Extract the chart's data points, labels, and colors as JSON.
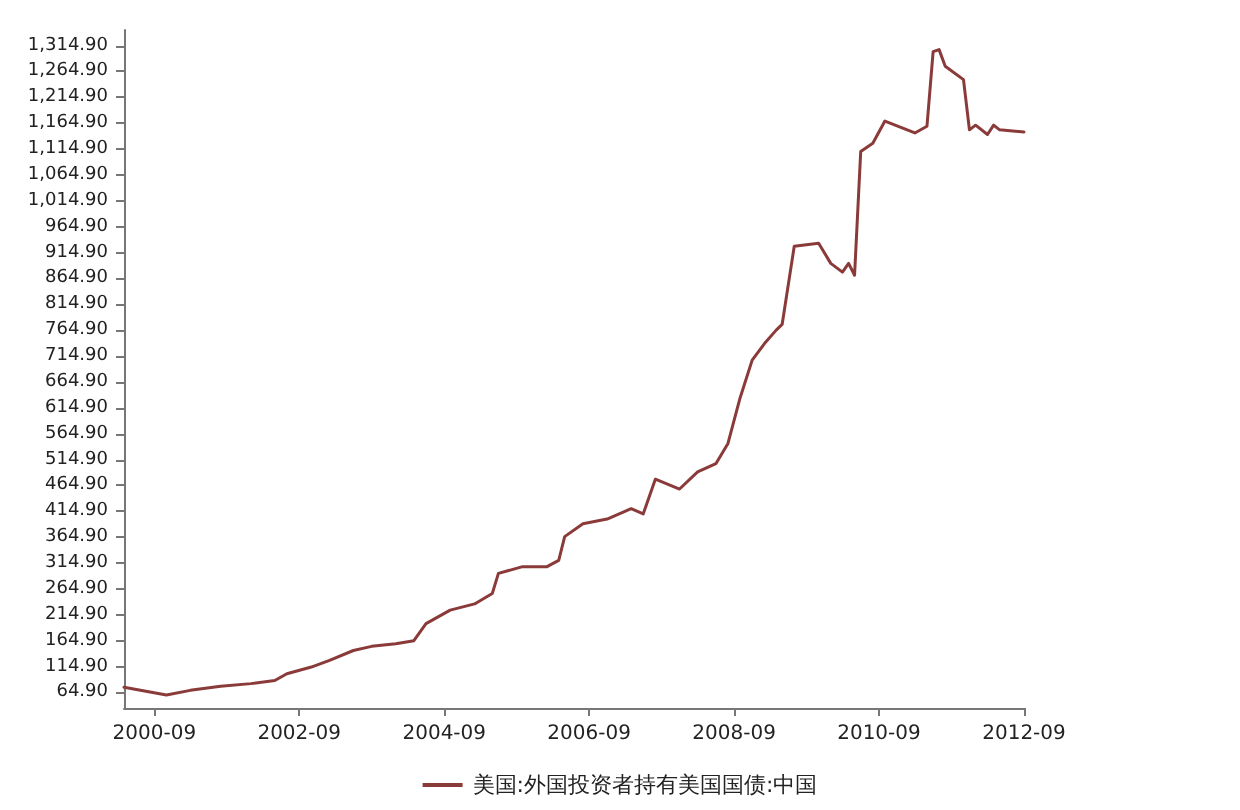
{
  "chart_data": {
    "type": "line",
    "x": [
      "2000-04",
      "2000-11",
      "2001-03",
      "2001-08",
      "2002-01",
      "2002-05",
      "2002-07",
      "2002-11",
      "2003-02",
      "2003-06",
      "2003-09",
      "2004-01",
      "2004-04",
      "2004-06",
      "2004-10",
      "2005-02",
      "2005-05",
      "2005-06",
      "2005-10",
      "2006-02",
      "2006-04",
      "2006-05",
      "2006-08",
      "2006-12",
      "2007-04",
      "2007-06",
      "2007-08",
      "2007-12",
      "2008-03",
      "2008-06",
      "2008-08",
      "2008-10",
      "2008-12",
      "2009-02",
      "2009-04",
      "2009-05",
      "2009-07",
      "2009-11",
      "2010-01",
      "2010-03",
      "2010-04",
      "2010-05",
      "2010-06",
      "2010-08",
      "2010-10",
      "2011-03",
      "2011-05",
      "2011-06",
      "2011-07",
      "2011-08",
      "2011-11",
      "2011-12",
      "2012-01",
      "2012-03",
      "2012-04",
      "2012-05",
      "2012-09"
    ],
    "series": [
      {
        "name": "美国:外国投资者持有美国国债:中国",
        "color": "#8b3a3a",
        "values": [
          75,
          60,
          69,
          77,
          82,
          88,
          101,
          114,
          127,
          146,
          154,
          159,
          165,
          198,
          224,
          236,
          256,
          295,
          308,
          308,
          320,
          366,
          391,
          400,
          420,
          410,
          477,
          458,
          491,
          507,
          546,
          634,
          707,
          739,
          765,
          776,
          927,
          933,
          894,
          877,
          894,
          871,
          1110,
          1126,
          1169,
          1146,
          1159,
          1303,
          1307,
          1275,
          1249,
          1152,
          1161,
          1143,
          1161,
          1152,
          1148
        ]
      }
    ],
    "xlim": [
      "2000-04",
      "2012-09"
    ],
    "xticks": [
      {
        "value": "2000-09",
        "label": "2000-09"
      },
      {
        "value": "2002-09",
        "label": "2002-09"
      },
      {
        "value": "2004-09",
        "label": "2004-09"
      },
      {
        "value": "2006-09",
        "label": "2006-09"
      },
      {
        "value": "2008-09",
        "label": "2008-09"
      },
      {
        "value": "2010-09",
        "label": "2010-09"
      },
      {
        "value": "2012-09",
        "label": "2012-09"
      }
    ],
    "ylim": [
      34.9,
      1344.9
    ],
    "yticks": [
      {
        "value": 64.9,
        "label": "64.90"
      },
      {
        "value": 114.9,
        "label": "114.90"
      },
      {
        "value": 164.9,
        "label": "164.90"
      },
      {
        "value": 214.9,
        "label": "214.90"
      },
      {
        "value": 264.9,
        "label": "264.90"
      },
      {
        "value": 314.9,
        "label": "314.90"
      },
      {
        "value": 364.9,
        "label": "364.90"
      },
      {
        "value": 414.9,
        "label": "414.90"
      },
      {
        "value": 464.9,
        "label": "464.90"
      },
      {
        "value": 514.9,
        "label": "514.90"
      },
      {
        "value": 564.9,
        "label": "564.90"
      },
      {
        "value": 614.9,
        "label": "614.90"
      },
      {
        "value": 664.9,
        "label": "664.90"
      },
      {
        "value": 714.9,
        "label": "714.90"
      },
      {
        "value": 764.9,
        "label": "764.90"
      },
      {
        "value": 814.9,
        "label": "814.90"
      },
      {
        "value": 864.9,
        "label": "864.90"
      },
      {
        "value": 914.9,
        "label": "914.90"
      },
      {
        "value": 964.9,
        "label": "964.90"
      },
      {
        "value": 1014.9,
        "label": "1,014.90"
      },
      {
        "value": 1064.9,
        "label": "1,064.90"
      },
      {
        "value": 1114.9,
        "label": "1,114.90"
      },
      {
        "value": 1164.9,
        "label": "1,164.90"
      },
      {
        "value": 1214.9,
        "label": "1,214.90"
      },
      {
        "value": 1264.9,
        "label": "1,264.90"
      },
      {
        "value": 1314.9,
        "label": "1,314.90"
      }
    ],
    "grid": false,
    "legend": "bottom",
    "marker": "none",
    "line_style": "solid"
  }
}
